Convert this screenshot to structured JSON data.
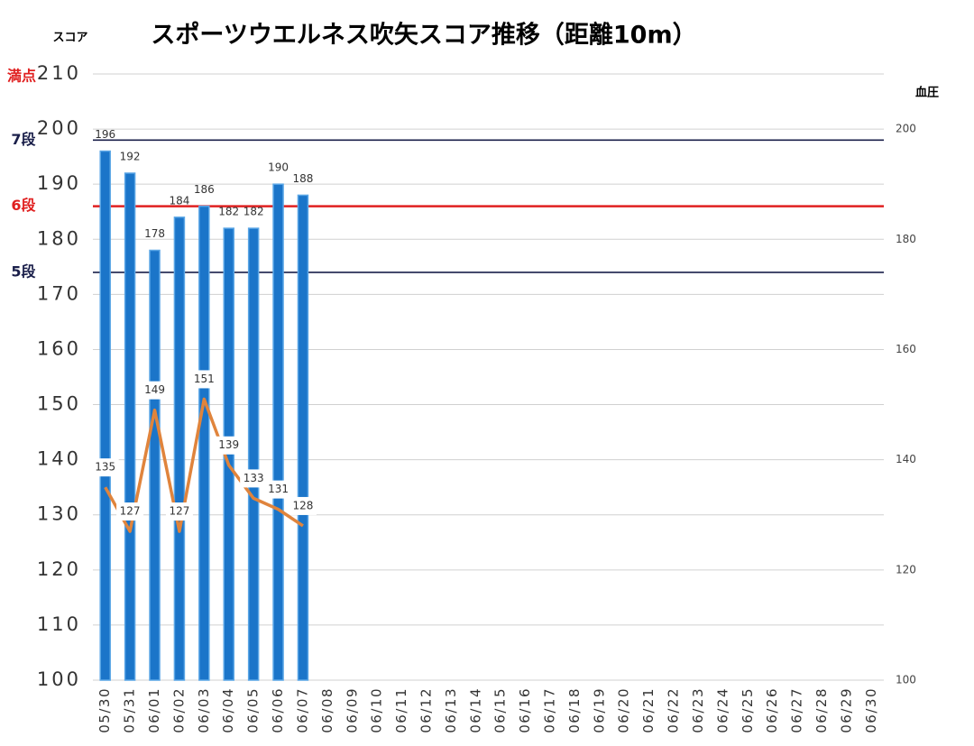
{
  "chart_data": {
    "type": "bar_line",
    "title": "スポーツウエルネス吹矢スコア推移（距離10m）",
    "y_axis_label": "スコア",
    "y2_axis_label": "血圧",
    "categories": [
      "05/30",
      "05/31",
      "06/01",
      "06/02",
      "06/03",
      "06/04",
      "06/05",
      "06/06",
      "06/07",
      "06/08",
      "06/09",
      "06/10",
      "06/11",
      "06/12",
      "06/13",
      "06/14",
      "06/15",
      "06/16",
      "06/17",
      "06/18",
      "06/19",
      "06/20",
      "06/21",
      "06/22",
      "06/23",
      "06/24",
      "06/25",
      "06/26",
      "06/27",
      "06/28",
      "06/29",
      "06/30"
    ],
    "series": [
      {
        "name": "スコア",
        "type": "bar",
        "color": "#1b75c9",
        "values": [
          196,
          192,
          178,
          184,
          186,
          182,
          182,
          190,
          188,
          null,
          null,
          null,
          null,
          null,
          null,
          null,
          null,
          null,
          null,
          null,
          null,
          null,
          null,
          null,
          null,
          null,
          null,
          null,
          null,
          null,
          null,
          null
        ]
      },
      {
        "name": "血圧",
        "type": "line",
        "axis": "y2",
        "color": "#e0843c",
        "values": [
          135,
          127,
          149,
          127,
          151,
          139,
          133,
          131,
          128,
          null,
          null,
          null,
          null,
          null,
          null,
          null,
          null,
          null,
          null,
          null,
          null,
          null,
          null,
          null,
          null,
          null,
          null,
          null,
          null,
          null,
          null,
          null
        ]
      }
    ],
    "ylim": [
      100,
      210
    ],
    "yticks": [
      100,
      110,
      120,
      130,
      140,
      150,
      160,
      170,
      180,
      190,
      200,
      210
    ],
    "y2lim": [
      100,
      210
    ],
    "y2ticks": [
      100,
      120,
      140,
      160,
      180,
      200
    ],
    "grid": true,
    "max_label": {
      "label": "満点",
      "value": 210,
      "color": "#e02020"
    },
    "reference_lines": [
      {
        "label": "7段",
        "value": 198,
        "color": "#1a1f4a"
      },
      {
        "label": "6段",
        "value": 186,
        "color": "#e02020"
      },
      {
        "label": "5段",
        "value": 174,
        "color": "#1a1f4a"
      }
    ]
  }
}
